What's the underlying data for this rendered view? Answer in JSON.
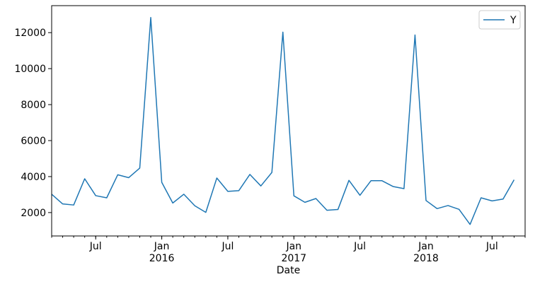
{
  "chart_data": {
    "type": "line",
    "title": "",
    "xlabel": "Date",
    "ylabel": "",
    "x": [
      "2015-03",
      "2015-04",
      "2015-05",
      "2015-06",
      "2015-07",
      "2015-08",
      "2015-09",
      "2015-10",
      "2015-11",
      "2015-12",
      "2016-01",
      "2016-02",
      "2016-03",
      "2016-04",
      "2016-05",
      "2016-06",
      "2016-07",
      "2016-08",
      "2016-09",
      "2016-10",
      "2016-11",
      "2016-12",
      "2017-01",
      "2017-02",
      "2017-03",
      "2017-04",
      "2017-05",
      "2017-06",
      "2017-07",
      "2017-08",
      "2017-09",
      "2017-10",
      "2017-11",
      "2017-12",
      "2018-01",
      "2018-02",
      "2018-03",
      "2018-04",
      "2018-05",
      "2018-06",
      "2018-07",
      "2018-08",
      "2018-09"
    ],
    "series": [
      {
        "name": "Y",
        "color": "#1f77b4",
        "values": [
          3020,
          2480,
          2420,
          3880,
          2940,
          2820,
          4100,
          3940,
          4470,
          12840,
          3680,
          2530,
          3020,
          2380,
          2010,
          3920,
          3180,
          3220,
          4120,
          3480,
          4230,
          12030,
          2930,
          2570,
          2780,
          2130,
          2170,
          3790,
          2960,
          3770,
          3770,
          3450,
          3330,
          11870,
          2670,
          2220,
          2390,
          2180,
          1340,
          2820,
          2650,
          2750,
          3820
        ]
      }
    ],
    "x_end": "2018-10",
    "yticks": [
      2000,
      4000,
      6000,
      8000,
      10000,
      12000
    ],
    "ylim": [
      700,
      13500
    ],
    "xticks": [
      {
        "date": "2015-07",
        "label": "Jul",
        "sublabel": ""
      },
      {
        "date": "2016-01",
        "label": "Jan",
        "sublabel": "2016"
      },
      {
        "date": "2016-07",
        "label": "Jul",
        "sublabel": ""
      },
      {
        "date": "2017-01",
        "label": "Jan",
        "sublabel": "2017"
      },
      {
        "date": "2017-07",
        "label": "Jul",
        "sublabel": ""
      },
      {
        "date": "2018-01",
        "label": "Jan",
        "sublabel": "2018"
      },
      {
        "date": "2018-07",
        "label": "Jul",
        "sublabel": ""
      }
    ],
    "grid": false,
    "legend": "top-right"
  }
}
